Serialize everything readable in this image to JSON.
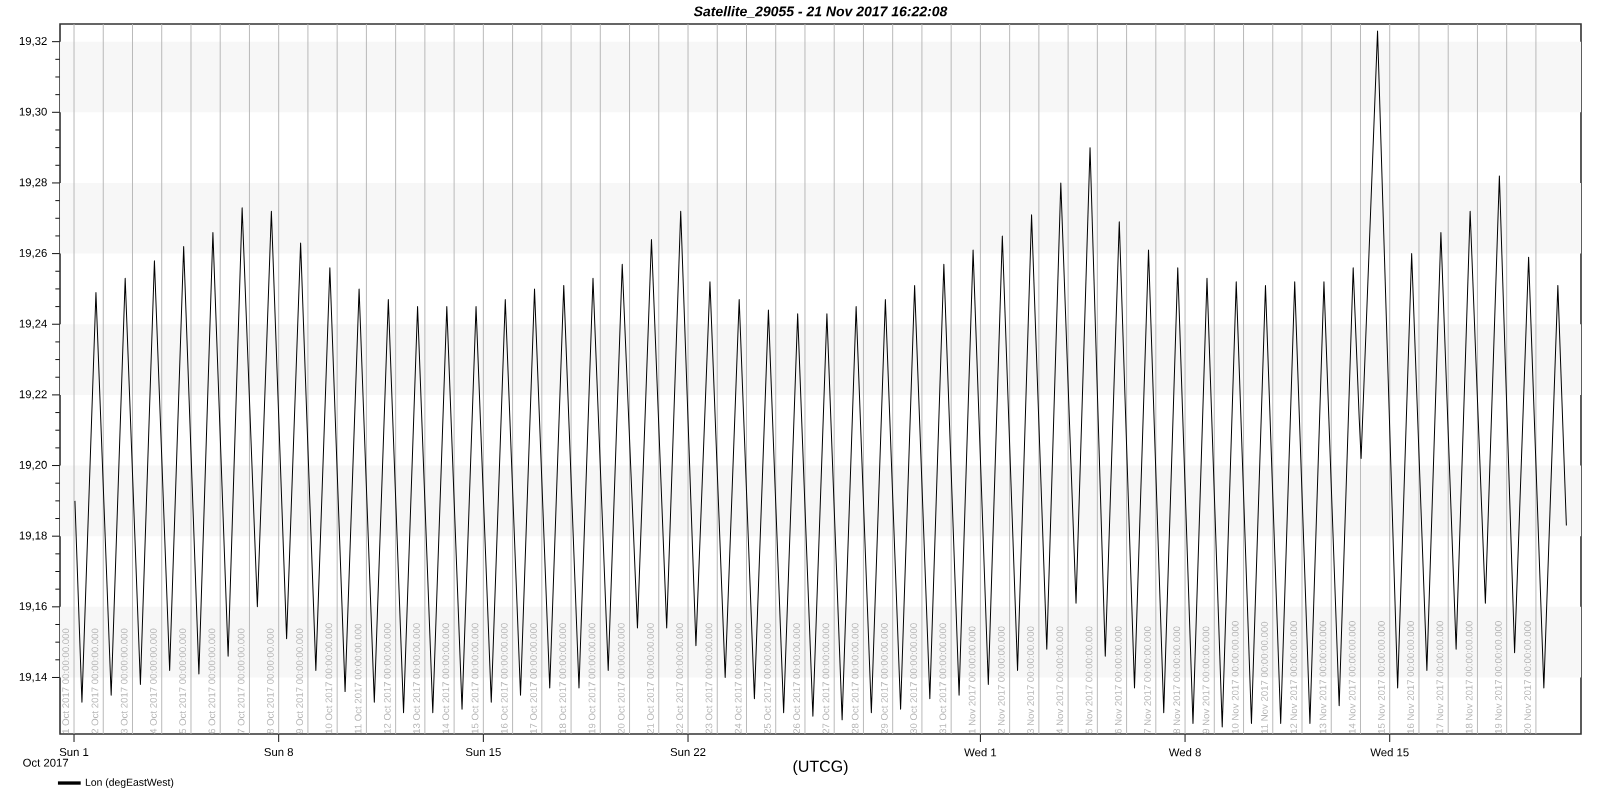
{
  "chart_data": {
    "type": "line",
    "title": "Satellite_29055 - 21 Nov 2017 16:22:08",
    "xlabel": "(UTCG)",
    "annotations": [
      "Oct 2017"
    ],
    "xlim": [
      "2017-09-30T12:30",
      "2017-11-21T13:00"
    ],
    "ylim": [
      19.124,
      19.325
    ],
    "xticks": [
      {
        "value": "2017-10-01",
        "label": "Sun 1"
      },
      {
        "value": "2017-10-08",
        "label": "Sun 8"
      },
      {
        "value": "2017-10-15",
        "label": "Sun 15"
      },
      {
        "value": "2017-10-22",
        "label": "Sun 22"
      },
      {
        "value": "2017-11-01",
        "label": "Wed 1"
      },
      {
        "value": "2017-11-08",
        "label": "Wed 8"
      },
      {
        "value": "2017-11-15",
        "label": "Wed 15"
      }
    ],
    "yticks": [
      {
        "value": 19.14,
        "label": "19,14"
      },
      {
        "value": 19.16,
        "label": "19,16"
      },
      {
        "value": 19.18,
        "label": "19,18"
      },
      {
        "value": 19.2,
        "label": "19,20"
      },
      {
        "value": 19.22,
        "label": "19,22"
      },
      {
        "value": 19.24,
        "label": "19,24"
      },
      {
        "value": 19.26,
        "label": "19,26"
      },
      {
        "value": 19.28,
        "label": "19,28"
      },
      {
        "value": 19.3,
        "label": "19,30"
      },
      {
        "value": 19.32,
        "label": "19,32"
      }
    ],
    "legend": "bottom left",
    "marker": "none",
    "line_style": "solid",
    "bands": [
      {
        "axis": "y",
        "from": 19.14,
        "to": 19.16,
        "color": "#f7f7f7"
      },
      {
        "axis": "y",
        "from": 19.18,
        "to": 19.2,
        "color": "#f7f7f7"
      },
      {
        "axis": "y",
        "from": 19.22,
        "to": 19.24,
        "color": "#f7f7f7"
      },
      {
        "axis": "y",
        "from": 19.26,
        "to": 19.28,
        "color": "#f7f7f7"
      },
      {
        "axis": "y",
        "from": 19.3,
        "to": 19.32,
        "color": "#f7f7f7"
      }
    ],
    "ref_lines": [
      {
        "axis": "x",
        "value": "2017-10-01",
        "label": "1 Oct 2017 00:00:00.000",
        "color": "#b4b4b4"
      },
      {
        "axis": "x",
        "value": "2017-10-02",
        "label": "2 Oct 2017 00:00:00.000",
        "color": "#b4b4b4"
      },
      {
        "axis": "x",
        "value": "2017-10-03",
        "label": "3 Oct 2017 00:00:00.000",
        "color": "#b4b4b4"
      },
      {
        "axis": "x",
        "value": "2017-10-04",
        "label": "4 Oct 2017 00:00:00.000",
        "color": "#b4b4b4"
      },
      {
        "axis": "x",
        "value": "2017-10-05",
        "label": "5 Oct 2017 00:00:00.000",
        "color": "#b4b4b4"
      },
      {
        "axis": "x",
        "value": "2017-10-06",
        "label": "6 Oct 2017 00:00:00.000",
        "color": "#b4b4b4"
      },
      {
        "axis": "x",
        "value": "2017-10-07",
        "label": "7 Oct 2017 00:00:00.000",
        "color": "#b4b4b4"
      },
      {
        "axis": "x",
        "value": "2017-10-08",
        "label": "8 Oct 2017 00:00:00.000",
        "color": "#b4b4b4"
      },
      {
        "axis": "x",
        "value": "2017-10-09",
        "label": "9 Oct 2017 00:00:00.000",
        "color": "#b4b4b4"
      },
      {
        "axis": "x",
        "value": "2017-10-10",
        "label": "10 Oct 2017 00:00:00.000",
        "color": "#b4b4b4"
      },
      {
        "axis": "x",
        "value": "2017-10-11",
        "label": "11 Oct 2017 00:00:00.000",
        "color": "#b4b4b4"
      },
      {
        "axis": "x",
        "value": "2017-10-12",
        "label": "12 Oct 2017 00:00:00.000",
        "color": "#b4b4b4"
      },
      {
        "axis": "x",
        "value": "2017-10-13",
        "label": "13 Oct 2017 00:00:00.000",
        "color": "#b4b4b4"
      },
      {
        "axis": "x",
        "value": "2017-10-14",
        "label": "14 Oct 2017 00:00:00.000",
        "color": "#b4b4b4"
      },
      {
        "axis": "x",
        "value": "2017-10-15",
        "label": "15 Oct 2017 00:00:00.000",
        "color": "#b4b4b4"
      },
      {
        "axis": "x",
        "value": "2017-10-16",
        "label": "16 Oct 2017 00:00:00.000",
        "color": "#b4b4b4"
      },
      {
        "axis": "x",
        "value": "2017-10-17",
        "label": "17 Oct 2017 00:00:00.000",
        "color": "#b4b4b4"
      },
      {
        "axis": "x",
        "value": "2017-10-18",
        "label": "18 Oct 2017 00:00:00.000",
        "color": "#b4b4b4"
      },
      {
        "axis": "x",
        "value": "2017-10-19",
        "label": "19 Oct 2017 00:00:00.000",
        "color": "#b4b4b4"
      },
      {
        "axis": "x",
        "value": "2017-10-20",
        "label": "20 Oct 2017 00:00:00.000",
        "color": "#b4b4b4"
      },
      {
        "axis": "x",
        "value": "2017-10-21",
        "label": "21 Oct 2017 00:00:00.000",
        "color": "#b4b4b4"
      },
      {
        "axis": "x",
        "value": "2017-10-22",
        "label": "22 Oct 2017 00:00:00.000",
        "color": "#b4b4b4"
      },
      {
        "axis": "x",
        "value": "2017-10-23",
        "label": "23 Oct 2017 00:00:00.000",
        "color": "#b4b4b4"
      },
      {
        "axis": "x",
        "value": "2017-10-24",
        "label": "24 Oct 2017 00:00:00.000",
        "color": "#b4b4b4"
      },
      {
        "axis": "x",
        "value": "2017-10-25",
        "label": "25 Oct 2017 00:00:00.000",
        "color": "#b4b4b4"
      },
      {
        "axis": "x",
        "value": "2017-10-26",
        "label": "26 Oct 2017 00:00:00.000",
        "color": "#b4b4b4"
      },
      {
        "axis": "x",
        "value": "2017-10-27",
        "label": "27 Oct 2017 00:00:00.000",
        "color": "#b4b4b4"
      },
      {
        "axis": "x",
        "value": "2017-10-28",
        "label": "28 Oct 2017 00:00:00.000",
        "color": "#b4b4b4"
      },
      {
        "axis": "x",
        "value": "2017-10-29",
        "label": "29 Oct 2017 00:00:00.000",
        "color": "#b4b4b4"
      },
      {
        "axis": "x",
        "value": "2017-10-30",
        "label": "30 Oct 2017 00:00:00.000",
        "color": "#b4b4b4"
      },
      {
        "axis": "x",
        "value": "2017-10-31",
        "label": "31 Oct 2017 00:00:00.000",
        "color": "#b4b4b4"
      },
      {
        "axis": "x",
        "value": "2017-11-01",
        "label": "1 Nov 2017 00:00:00.000",
        "color": "#b4b4b4"
      },
      {
        "axis": "x",
        "value": "2017-11-02",
        "label": "2 Nov 2017 00:00:00.000",
        "color": "#b4b4b4"
      },
      {
        "axis": "x",
        "value": "2017-11-03",
        "label": "3 Nov 2017 00:00:00.000",
        "color": "#b4b4b4"
      },
      {
        "axis": "x",
        "value": "2017-11-04",
        "label": "4 Nov 2017 00:00:00.000",
        "color": "#b4b4b4"
      },
      {
        "axis": "x",
        "value": "2017-11-05",
        "label": "5 Nov 2017 00:00:00.000",
        "color": "#b4b4b4"
      },
      {
        "axis": "x",
        "value": "2017-11-06",
        "label": "6 Nov 2017 00:00:00.000",
        "color": "#b4b4b4"
      },
      {
        "axis": "x",
        "value": "2017-11-07",
        "label": "7 Nov 2017 00:00:00.000",
        "color": "#b4b4b4"
      },
      {
        "axis": "x",
        "value": "2017-11-08",
        "label": "8 Nov 2017 00:00:00.000",
        "color": "#b4b4b4"
      },
      {
        "axis": "x",
        "value": "2017-11-09",
        "label": "9 Nov 2017 00:00:00.000",
        "color": "#b4b4b4"
      },
      {
        "axis": "x",
        "value": "2017-11-10",
        "label": "10 Nov 2017 00:00:00.000",
        "color": "#b4b4b4"
      },
      {
        "axis": "x",
        "value": "2017-11-11",
        "label": "11 Nov 2017 00:00:00.000",
        "color": "#b4b4b4"
      },
      {
        "axis": "x",
        "value": "2017-11-12",
        "label": "12 Nov 2017 00:00:00.000",
        "color": "#b4b4b4"
      },
      {
        "axis": "x",
        "value": "2017-11-13",
        "label": "13 Nov 2017 00:00:00.000",
        "color": "#b4b4b4"
      },
      {
        "axis": "x",
        "value": "2017-11-14",
        "label": "14 Nov 2017 00:00:00.000",
        "color": "#b4b4b4"
      },
      {
        "axis": "x",
        "value": "2017-11-15",
        "label": "15 Nov 2017 00:00:00.000",
        "color": "#b4b4b4"
      },
      {
        "axis": "x",
        "value": "2017-11-16",
        "label": "16 Nov 2017 00:00:00.000",
        "color": "#b4b4b4"
      },
      {
        "axis": "x",
        "value": "2017-11-17",
        "label": "17 Nov 2017 00:00:00.000",
        "color": "#b4b4b4"
      },
      {
        "axis": "x",
        "value": "2017-11-18",
        "label": "18 Nov 2017 00:00:00.000",
        "color": "#b4b4b4"
      },
      {
        "axis": "x",
        "value": "2017-11-19",
        "label": "19 Nov 2017 00:00:00.000",
        "color": "#b4b4b4"
      },
      {
        "axis": "x",
        "value": "2017-11-20",
        "label": "20 Nov 2017 00:00:00.000",
        "color": "#b4b4b4"
      }
    ],
    "series": [
      {
        "name": "Lon (degEastWest)",
        "color": "#000000",
        "x": [
          "2017-10-01T00:45",
          "2017-10-01T06:30",
          "2017-10-01T18:00",
          "2017-10-02T06:30",
          "2017-10-02T18:00",
          "2017-10-03T06:30",
          "2017-10-03T18:00",
          "2017-10-04T06:30",
          "2017-10-04T18:00",
          "2017-10-05T06:30",
          "2017-10-05T18:00",
          "2017-10-06T06:30",
          "2017-10-06T18:00",
          "2017-10-07T06:30",
          "2017-10-07T18:00",
          "2017-10-08T06:30",
          "2017-10-08T18:00",
          "2017-10-09T06:30",
          "2017-10-09T18:00",
          "2017-10-10T06:30",
          "2017-10-10T18:00",
          "2017-10-11T06:30",
          "2017-10-11T18:00",
          "2017-10-12T06:30",
          "2017-10-12T18:00",
          "2017-10-13T06:30",
          "2017-10-13T18:00",
          "2017-10-14T06:30",
          "2017-10-14T18:00",
          "2017-10-15T06:30",
          "2017-10-15T18:00",
          "2017-10-16T06:30",
          "2017-10-16T18:00",
          "2017-10-17T06:30",
          "2017-10-17T18:00",
          "2017-10-18T06:30",
          "2017-10-18T18:00",
          "2017-10-19T06:30",
          "2017-10-19T18:00",
          "2017-10-20T06:30",
          "2017-10-20T18:00",
          "2017-10-21T06:30",
          "2017-10-21T18:00",
          "2017-10-22T06:30",
          "2017-10-22T18:00",
          "2017-10-23T06:30",
          "2017-10-23T18:00",
          "2017-10-24T06:30",
          "2017-10-24T18:00",
          "2017-10-25T06:30",
          "2017-10-25T18:00",
          "2017-10-26T06:30",
          "2017-10-26T18:00",
          "2017-10-27T06:30",
          "2017-10-27T18:00",
          "2017-10-28T06:30",
          "2017-10-28T18:00",
          "2017-10-29T06:30",
          "2017-10-29T18:00",
          "2017-10-30T06:30",
          "2017-10-30T18:00",
          "2017-10-31T06:30",
          "2017-10-31T18:00",
          "2017-11-01T06:30",
          "2017-11-01T18:00",
          "2017-11-02T06:30",
          "2017-11-02T18:00",
          "2017-11-03T06:30",
          "2017-11-03T18:00",
          "2017-11-04T06:30",
          "2017-11-04T18:00",
          "2017-11-05T06:30",
          "2017-11-05T18:00",
          "2017-11-06T06:30",
          "2017-11-06T18:00",
          "2017-11-07T06:30",
          "2017-11-07T18:00",
          "2017-11-08T06:30",
          "2017-11-08T18:00",
          "2017-11-09T06:30",
          "2017-11-09T18:00",
          "2017-11-10T06:30",
          "2017-11-10T18:00",
          "2017-11-11T06:30",
          "2017-11-11T18:00",
          "2017-11-12T06:30",
          "2017-11-12T18:00",
          "2017-11-13T06:30",
          "2017-11-13T18:00",
          "2017-11-13T23:00",
          "2017-11-14T00:30",
          "2017-11-14T14:00",
          "2017-11-15T06:30",
          "2017-11-15T18:00",
          "2017-11-16T06:30",
          "2017-11-16T18:00",
          "2017-11-17T06:30",
          "2017-11-17T18:00",
          "2017-11-18T06:30",
          "2017-11-18T18:00",
          "2017-11-19T06:30",
          "2017-11-19T18:00",
          "2017-11-20T06:30",
          "2017-11-20T18:00",
          "2017-11-21T01:00"
        ],
        "values": [
          19.19,
          19.133,
          19.249,
          19.135,
          19.253,
          19.138,
          19.258,
          19.142,
          19.262,
          19.141,
          19.266,
          19.146,
          19.273,
          19.16,
          19.272,
          19.151,
          19.263,
          19.142,
          19.256,
          19.136,
          19.25,
          19.133,
          19.247,
          19.13,
          19.245,
          19.13,
          19.245,
          19.131,
          19.245,
          19.133,
          19.247,
          19.135,
          19.25,
          19.137,
          19.251,
          19.137,
          19.253,
          19.142,
          19.257,
          19.154,
          19.264,
          19.154,
          19.272,
          19.149,
          19.252,
          19.14,
          19.247,
          19.134,
          19.244,
          19.13,
          19.243,
          19.129,
          19.243,
          19.128,
          19.245,
          19.13,
          19.247,
          19.131,
          19.251,
          19.134,
          19.257,
          19.135,
          19.261,
          19.138,
          19.265,
          19.142,
          19.271,
          19.148,
          19.28,
          19.161,
          19.29,
          19.146,
          19.269,
          19.137,
          19.261,
          19.13,
          19.256,
          19.127,
          19.253,
          19.126,
          19.252,
          19.127,
          19.251,
          19.127,
          19.252,
          19.127,
          19.252,
          19.132,
          19.256,
          19.213,
          19.202,
          19.323,
          19.137,
          19.26,
          19.142,
          19.266,
          19.148,
          19.272,
          19.161,
          19.282,
          19.147,
          19.259,
          19.137,
          19.251,
          19.183
        ]
      }
    ]
  }
}
